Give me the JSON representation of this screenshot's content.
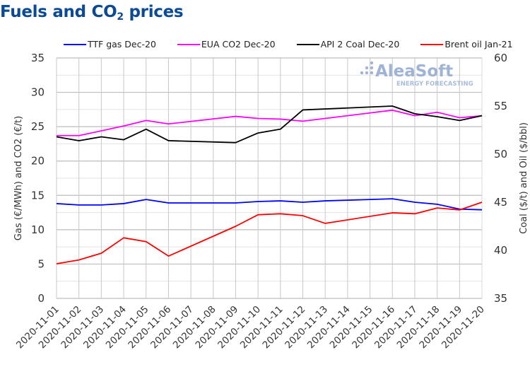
{
  "title": {
    "main": "Fuels and CO",
    "sub": "2",
    "tail": " prices"
  },
  "watermark": {
    "brand": "AleaSoft",
    "tagline": "ENERGY FORECASTING"
  },
  "chart_data": {
    "type": "line",
    "title": "Fuels and CO2 prices",
    "x": [
      "2020-11-01",
      "2020-11-02",
      "2020-11-03",
      "2020-11-04",
      "2020-11-05",
      "2020-11-06",
      "2020-11-07",
      "2020-11-08",
      "2020-11-09",
      "2020-11-10",
      "2020-11-11",
      "2020-11-12",
      "2020-11-13",
      "2020-11-14",
      "2020-11-15",
      "2020-11-16",
      "2020-11-17",
      "2020-11-18",
      "2020-11-19",
      "2020-11-20"
    ],
    "ylabel": "Gas (€/MWh) and CO2 (€/t)",
    "y2label": "Coal ($/t) and Oil ($/bbl)",
    "ylim": [
      0,
      35
    ],
    "y2lim": [
      35,
      60
    ],
    "yticks": [
      0,
      5,
      10,
      15,
      20,
      25,
      30,
      35
    ],
    "y2ticks": [
      35,
      40,
      45,
      50,
      55,
      60
    ],
    "grid": true,
    "legend_position": "top",
    "series": [
      {
        "name": "TTF gas Dec-20",
        "axis": "left",
        "color": "#0000ff",
        "points": [
          [
            "2020-11-01",
            13.8
          ],
          [
            "2020-11-02",
            13.6
          ],
          [
            "2020-11-03",
            13.6
          ],
          [
            "2020-11-04",
            13.8
          ],
          [
            "2020-11-05",
            14.4
          ],
          [
            "2020-11-06",
            13.9
          ],
          [
            "2020-11-09",
            13.9
          ],
          [
            "2020-11-10",
            14.1
          ],
          [
            "2020-11-11",
            14.2
          ],
          [
            "2020-11-12",
            14.0
          ],
          [
            "2020-11-13",
            14.2
          ],
          [
            "2020-11-16",
            14.5
          ],
          [
            "2020-11-17",
            14.0
          ],
          [
            "2020-11-18",
            13.7
          ],
          [
            "2020-11-19",
            13.0
          ],
          [
            "2020-11-20",
            12.9
          ]
        ]
      },
      {
        "name": "EUA CO2 Dec-20",
        "axis": "left",
        "color": "#ff00ff",
        "points": [
          [
            "2020-11-01",
            23.7
          ],
          [
            "2020-11-02",
            23.7
          ],
          [
            "2020-11-03",
            24.4
          ],
          [
            "2020-11-04",
            25.1
          ],
          [
            "2020-11-05",
            25.9
          ],
          [
            "2020-11-06",
            25.4
          ],
          [
            "2020-11-09",
            26.5
          ],
          [
            "2020-11-10",
            26.2
          ],
          [
            "2020-11-11",
            26.1
          ],
          [
            "2020-11-12",
            25.8
          ],
          [
            "2020-11-16",
            27.4
          ],
          [
            "2020-11-17",
            26.6
          ],
          [
            "2020-11-18",
            27.1
          ],
          [
            "2020-11-19",
            26.3
          ],
          [
            "2020-11-20",
            26.6
          ]
        ]
      },
      {
        "name": "API 2 Coal Dec-20",
        "axis": "right",
        "color": "#000000",
        "points": [
          [
            "2020-11-01",
            51.8
          ],
          [
            "2020-11-02",
            51.4
          ],
          [
            "2020-11-03",
            51.8
          ],
          [
            "2020-11-04",
            51.5
          ],
          [
            "2020-11-05",
            52.6
          ],
          [
            "2020-11-06",
            51.4
          ],
          [
            "2020-11-09",
            51.2
          ],
          [
            "2020-11-10",
            52.2
          ],
          [
            "2020-11-11",
            52.6
          ],
          [
            "2020-11-12",
            54.6
          ],
          [
            "2020-11-16",
            55.0
          ],
          [
            "2020-11-17",
            54.2
          ],
          [
            "2020-11-18",
            53.9
          ],
          [
            "2020-11-19",
            53.5
          ],
          [
            "2020-11-20",
            54.0
          ]
        ]
      },
      {
        "name": "Brent oil Jan-21",
        "axis": "right",
        "color": "#ff0000",
        "points": [
          [
            "2020-11-01",
            38.6
          ],
          [
            "2020-11-02",
            39.0
          ],
          [
            "2020-11-03",
            39.7
          ],
          [
            "2020-11-04",
            41.3
          ],
          [
            "2020-11-05",
            40.9
          ],
          [
            "2020-11-06",
            39.4
          ],
          [
            "2020-11-09",
            42.5
          ],
          [
            "2020-11-10",
            43.7
          ],
          [
            "2020-11-11",
            43.8
          ],
          [
            "2020-11-12",
            43.6
          ],
          [
            "2020-11-13",
            42.8
          ],
          [
            "2020-11-16",
            43.9
          ],
          [
            "2020-11-17",
            43.8
          ],
          [
            "2020-11-18",
            44.4
          ],
          [
            "2020-11-19",
            44.2
          ],
          [
            "2020-11-20",
            45.0
          ]
        ]
      }
    ]
  }
}
